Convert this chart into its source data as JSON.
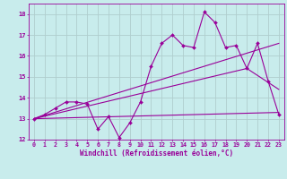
{
  "xlabel": "Windchill (Refroidissement éolien,°C)",
  "background_color": "#c8ecec",
  "grid_color": "#b0cece",
  "line_color": "#990099",
  "xlim": [
    -0.5,
    23.5
  ],
  "ylim": [
    12,
    18.5
  ],
  "yticks": [
    12,
    13,
    14,
    15,
    16,
    17,
    18
  ],
  "xticks": [
    0,
    1,
    2,
    3,
    4,
    5,
    6,
    7,
    8,
    9,
    10,
    11,
    12,
    13,
    14,
    15,
    16,
    17,
    18,
    19,
    20,
    21,
    22,
    23
  ],
  "line1_x": [
    0,
    1,
    2,
    3,
    4,
    5,
    6,
    7,
    8,
    9,
    10,
    11,
    12,
    13,
    14,
    15,
    16,
    17,
    18,
    19,
    20,
    21,
    22,
    23
  ],
  "line1_y": [
    13.0,
    13.2,
    13.5,
    13.8,
    13.8,
    13.7,
    12.5,
    13.1,
    12.1,
    12.8,
    13.8,
    15.5,
    16.6,
    17.0,
    16.5,
    16.4,
    18.1,
    17.6,
    16.4,
    16.5,
    15.4,
    16.6,
    14.8,
    13.2
  ],
  "line2_x": [
    0,
    23
  ],
  "line2_y": [
    13.0,
    16.6
  ],
  "line3_x": [
    0,
    20,
    23
  ],
  "line3_y": [
    13.0,
    15.4,
    14.4
  ],
  "line4_x": [
    0,
    23
  ],
  "line4_y": [
    13.0,
    13.3
  ],
  "xlabel_fontsize": 5.5,
  "tick_fontsize": 4.8
}
